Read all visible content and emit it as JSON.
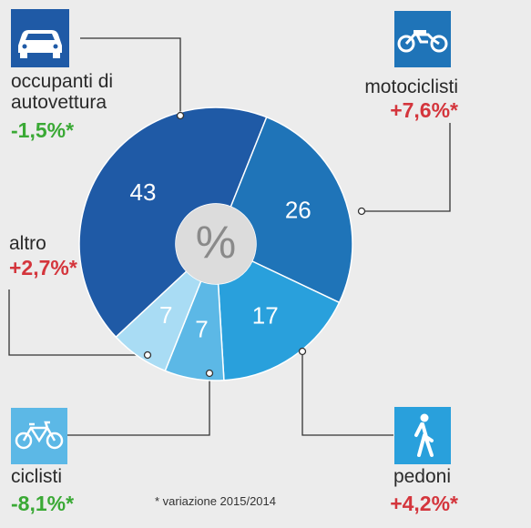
{
  "chart_data": {
    "type": "donut",
    "categories": [
      "occupanti di autovettura",
      "motociclisti",
      "pedoni",
      "ciclisti",
      "altro"
    ],
    "values": [
      43,
      26,
      17,
      7,
      7
    ],
    "colors": [
      "#1f5aa6",
      "#1f74b8",
      "#29a0dc",
      "#5cb8e6",
      "#a9dcf4"
    ],
    "change_labels": [
      "-1,5%*",
      "+7,6%*",
      "+4,2%*",
      "-8,1%*",
      "+2,7%*"
    ],
    "change_colors": [
      "#3aa935",
      "#d4353c",
      "#d4353c",
      "#3aa935",
      "#d4353c"
    ],
    "center_label": "%",
    "footnote": "* variazione 2015/2014"
  }
}
